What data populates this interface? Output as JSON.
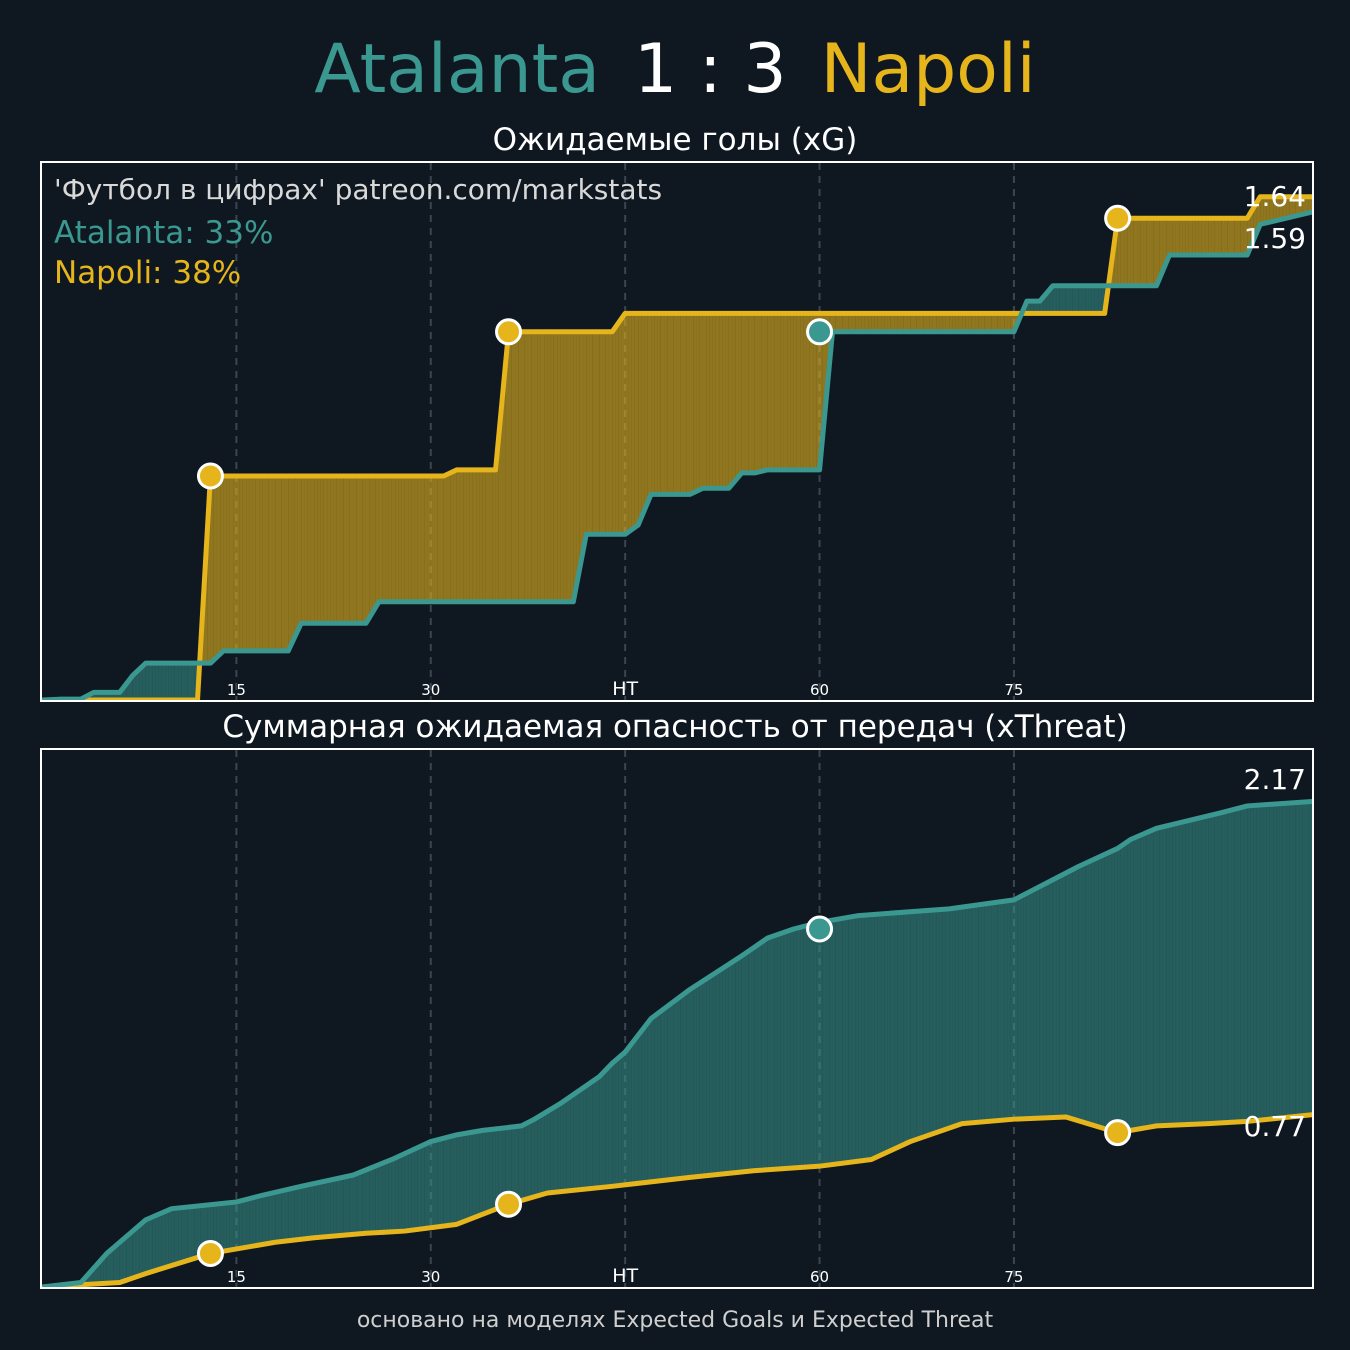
{
  "header": {
    "home_team": "Atalanta",
    "score": "1 : 3",
    "away_team": "Napoli"
  },
  "colors": {
    "home": "#3a9890",
    "away": "#e6b51c",
    "background": "#0f1821"
  },
  "panel_xg": {
    "credit": "'Футбол в цифрах' patreon.com/markstats",
    "home_pct": "Atalanta: 33%",
    "away_pct": "Napoli: 38%"
  },
  "footer": "основано на моделях Expected Goals и Expected Threat",
  "chart_data": [
    {
      "type": "line",
      "title": "Ожидаемые голы (xG)",
      "x_ticks": [
        15,
        30,
        45,
        60,
        75
      ],
      "x_tick_labels": [
        "15",
        "30",
        "HT",
        "60",
        "75"
      ],
      "xlim": [
        0,
        98
      ],
      "ylim": [
        0,
        1.75
      ],
      "step": true,
      "fill_between": true,
      "end_labels": {
        "Atalanta": "1.59",
        "Napoli": "1.64"
      },
      "series": [
        {
          "name": "Atalanta",
          "color": "#3a9890",
          "x": [
            0,
            1.5,
            3,
            4,
            6,
            7,
            8,
            13,
            14,
            19,
            20,
            25,
            26,
            41,
            42,
            45,
            46,
            47,
            50,
            51,
            53,
            54,
            55,
            56,
            60,
            61,
            75,
            76,
            77,
            78,
            86,
            87,
            93,
            94,
            98
          ],
          "y": [
            0,
            0.003,
            0.003,
            0.025,
            0.025,
            0.08,
            0.12,
            0.12,
            0.16,
            0.16,
            0.25,
            0.25,
            0.32,
            0.32,
            0.54,
            0.54,
            0.57,
            0.67,
            0.67,
            0.69,
            0.69,
            0.74,
            0.74,
            0.75,
            0.75,
            1.2,
            1.2,
            1.3,
            1.3,
            1.35,
            1.35,
            1.45,
            1.45,
            1.55,
            1.59
          ],
          "goals": [
            {
              "minute": 60,
              "xg": 1.2
            }
          ]
        },
        {
          "name": "Napoli",
          "color": "#e6b51c",
          "x": [
            0,
            12,
            13,
            31,
            32,
            35,
            36,
            44,
            45,
            82,
            83,
            93,
            94,
            98
          ],
          "y": [
            0,
            0,
            0.73,
            0.73,
            0.75,
            0.75,
            1.2,
            1.2,
            1.26,
            1.26,
            1.57,
            1.57,
            1.64,
            1.64
          ],
          "goals": [
            {
              "minute": 13,
              "xg": 0.73
            },
            {
              "minute": 36,
              "xg": 1.2
            },
            {
              "minute": 83,
              "xg": 1.57
            }
          ]
        }
      ]
    },
    {
      "type": "line",
      "title": "Суммарная ожидаемая опасность от передач (xThreat)",
      "x_ticks": [
        15,
        30,
        45,
        60,
        75
      ],
      "x_tick_labels": [
        "15",
        "30",
        "HT",
        "60",
        "75"
      ],
      "xlim": [
        0,
        98
      ],
      "ylim": [
        0,
        2.4
      ],
      "fill_between": true,
      "end_labels": {
        "Atalanta": "2.17",
        "Napoli": "0.77"
      },
      "series": [
        {
          "name": "Atalanta",
          "color": "#3a9890",
          "x": [
            0,
            3,
            5,
            8,
            10,
            15,
            17,
            20,
            24,
            27,
            30,
            32,
            34,
            37,
            38,
            40,
            43,
            44,
            45,
            47,
            50,
            54,
            55,
            56,
            58,
            60,
            63,
            70,
            75,
            80,
            83,
            84,
            86,
            91,
            93,
            98
          ],
          "y": [
            0,
            0.02,
            0.15,
            0.3,
            0.35,
            0.38,
            0.41,
            0.45,
            0.5,
            0.57,
            0.65,
            0.68,
            0.7,
            0.72,
            0.75,
            0.82,
            0.94,
            1.0,
            1.05,
            1.2,
            1.33,
            1.48,
            1.52,
            1.56,
            1.6,
            1.63,
            1.66,
            1.69,
            1.73,
            1.88,
            1.96,
            2.0,
            2.05,
            2.12,
            2.15,
            2.17
          ],
          "goals": [
            {
              "minute": 60,
              "xt": 1.6
            }
          ]
        },
        {
          "name": "Napoli",
          "color": "#e6b51c",
          "x": [
            0,
            6,
            8,
            13,
            15,
            18,
            21,
            25,
            28,
            32,
            36,
            39,
            44,
            50,
            55,
            60,
            64,
            67,
            71,
            75,
            79,
            83,
            86,
            90,
            93,
            98
          ],
          "y": [
            0,
            0.02,
            0.06,
            0.15,
            0.17,
            0.2,
            0.22,
            0.24,
            0.25,
            0.28,
            0.37,
            0.42,
            0.45,
            0.49,
            0.52,
            0.54,
            0.57,
            0.65,
            0.73,
            0.75,
            0.76,
            0.69,
            0.72,
            0.73,
            0.74,
            0.77
          ],
          "goals": [
            {
              "minute": 13,
              "xt": 0.15
            },
            {
              "minute": 36,
              "xt": 0.37
            },
            {
              "minute": 83,
              "xt": 0.69
            }
          ]
        }
      ]
    }
  ]
}
